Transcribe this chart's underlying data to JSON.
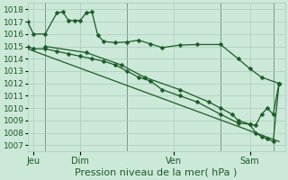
{
  "title": "Pression niveau de la mer( hPa )",
  "bg_color": "#cce8d8",
  "grid_color": "#aaccbb",
  "line_color": "#1a5c28",
  "ylim": [
    1006.5,
    1018.5
  ],
  "yticks": [
    1007,
    1008,
    1009,
    1010,
    1011,
    1012,
    1013,
    1014,
    1015,
    1016,
    1017,
    1018
  ],
  "tick_fontsize": 6.5,
  "label_fontsize": 8,
  "series1": {
    "x": [
      0,
      0.5,
      1.5,
      2.5,
      3.0,
      3.5,
      4.0,
      4.5,
      5.0,
      5.5,
      6.0,
      6.5,
      7.5,
      8.5,
      9.5,
      10.5,
      11.5,
      13.0,
      14.5,
      16.5,
      18.0,
      19.0,
      20.0,
      21.5
    ],
    "y": [
      1017.0,
      1016.0,
      1016.0,
      1017.7,
      1017.8,
      1017.1,
      1017.1,
      1017.1,
      1017.7,
      1017.8,
      1015.9,
      1015.4,
      1015.3,
      1015.35,
      1015.5,
      1015.2,
      1014.9,
      1015.1,
      1015.15,
      1015.15,
      1014.0,
      1013.2,
      1012.5,
      1012.0
    ]
  },
  "series2": {
    "x": [
      0,
      0.5,
      1.5,
      2.5,
      3.5,
      4.5,
      5.5,
      6.5,
      7.5,
      8.5,
      9.5,
      10.5,
      11.5,
      13.0,
      14.5,
      16.5,
      18.0,
      19.0,
      19.5,
      20.0,
      20.5,
      21.0,
      21.5
    ],
    "y": [
      1015.0,
      1014.8,
      1014.8,
      1014.6,
      1014.4,
      1014.2,
      1014.0,
      1013.8,
      1013.5,
      1013.0,
      1012.5,
      1012.2,
      1011.5,
      1011.0,
      1010.5,
      1009.5,
      1008.8,
      1008.7,
      1008.6,
      1009.5,
      1010.0,
      1009.5,
      1012.0
    ]
  },
  "series3": {
    "x": [
      0,
      21.5
    ],
    "y": [
      1014.8,
      1007.3
    ]
  },
  "series4": {
    "x": [
      1.5,
      5.0,
      8.0,
      10.0,
      13.0,
      15.5,
      16.5,
      17.5,
      18.0,
      19.0,
      19.5,
      20.0,
      20.5,
      21.0,
      21.5
    ],
    "y": [
      1015.0,
      1014.5,
      1013.5,
      1012.5,
      1011.5,
      1010.5,
      1010.0,
      1009.5,
      1009.0,
      1008.7,
      1008.0,
      1007.7,
      1007.5,
      1007.3,
      1012.0
    ]
  },
  "vlines": [
    1.5,
    8.5,
    16.5,
    21.0
  ],
  "day_ticks": [
    0.5,
    4.5,
    12.5,
    19.0
  ],
  "day_labels": [
    "Jeu",
    "Dim",
    "Ven",
    "Sam"
  ]
}
